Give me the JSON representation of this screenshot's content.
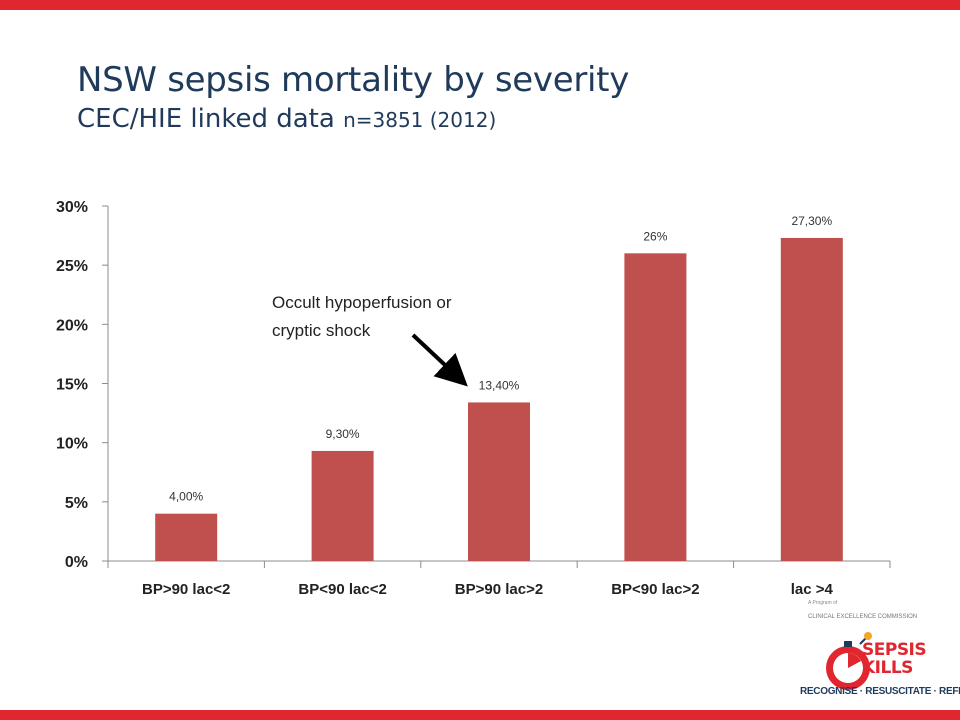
{
  "slide": {
    "title": "NSW sepsis mortality by severity",
    "subtitle_main": "CEC/HIE linked data",
    "subtitle_detail": "n=3851 (2012)",
    "annotation_line1": "Occult hypoperfusion or",
    "annotation_line2": "cryptic shock",
    "accent_color": "#e0262e",
    "title_color": "#1f3a5a"
  },
  "logo": {
    "tagline": "A Program of",
    "commission": "CLINICAL EXCELLENCE COMMISSION",
    "brand_top": "SEPSIS",
    "brand_bottom": "KILLS",
    "motto": "RECOGNISE · RESUSCITATE · REFER"
  },
  "chart_data": {
    "type": "bar",
    "categories": [
      "BP>90 lac<2",
      "BP<90 lac<2",
      "BP>90 lac>2",
      "BP<90 lac>2",
      "lac >4"
    ],
    "values": [
      4.0,
      9.3,
      13.4,
      26.0,
      27.3
    ],
    "data_labels": [
      "4,00%",
      "9,30%",
      "13,40%",
      "26%",
      "27,30%"
    ],
    "yticks": [
      "0%",
      "5%",
      "10%",
      "15%",
      "20%",
      "25%",
      "30%"
    ],
    "ylim": [
      0,
      30
    ],
    "bar_color": "#c0504d",
    "grid": false,
    "xlabel": "",
    "ylabel": ""
  }
}
